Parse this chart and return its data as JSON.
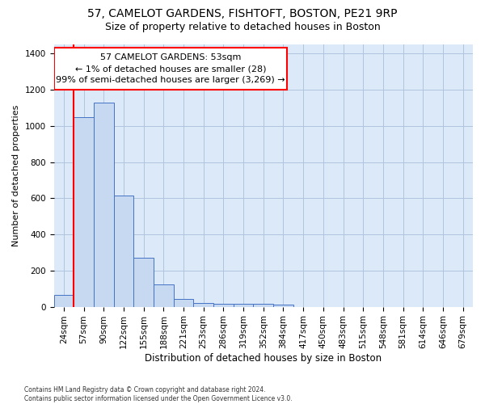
{
  "title1": "57, CAMELOT GARDENS, FISHTOFT, BOSTON, PE21 9RP",
  "title2": "Size of property relative to detached houses in Boston",
  "xlabel": "Distribution of detached houses by size in Boston",
  "ylabel": "Number of detached properties",
  "categories": [
    "24sqm",
    "57sqm",
    "90sqm",
    "122sqm",
    "155sqm",
    "188sqm",
    "221sqm",
    "253sqm",
    "286sqm",
    "319sqm",
    "352sqm",
    "384sqm",
    "417sqm",
    "450sqm",
    "483sqm",
    "515sqm",
    "548sqm",
    "581sqm",
    "614sqm",
    "646sqm",
    "679sqm"
  ],
  "values": [
    65,
    1050,
    1130,
    615,
    270,
    125,
    45,
    20,
    15,
    15,
    18,
    10,
    0,
    0,
    0,
    0,
    0,
    0,
    0,
    0,
    0
  ],
  "bar_color": "#c6d9f1",
  "bar_edge_color": "#4472c4",
  "annotation_text": "57 CAMELOT GARDENS: 53sqm\n← 1% of detached houses are smaller (28)\n99% of semi-detached houses are larger (3,269) →",
  "annotation_box_color": "white",
  "annotation_box_edge_color": "red",
  "vline_color": "red",
  "ylim": [
    0,
    1450
  ],
  "yticks": [
    0,
    200,
    400,
    600,
    800,
    1000,
    1200,
    1400
  ],
  "grid_color": "#b0c4de",
  "bg_color": "#dce9f8",
  "footnote": "Contains HM Land Registry data © Crown copyright and database right 2024.\nContains public sector information licensed under the Open Government Licence v3.0.",
  "title1_fontsize": 10,
  "title2_fontsize": 9,
  "xlabel_fontsize": 8.5,
  "ylabel_fontsize": 8,
  "tick_fontsize": 7.5,
  "annot_fontsize": 8
}
